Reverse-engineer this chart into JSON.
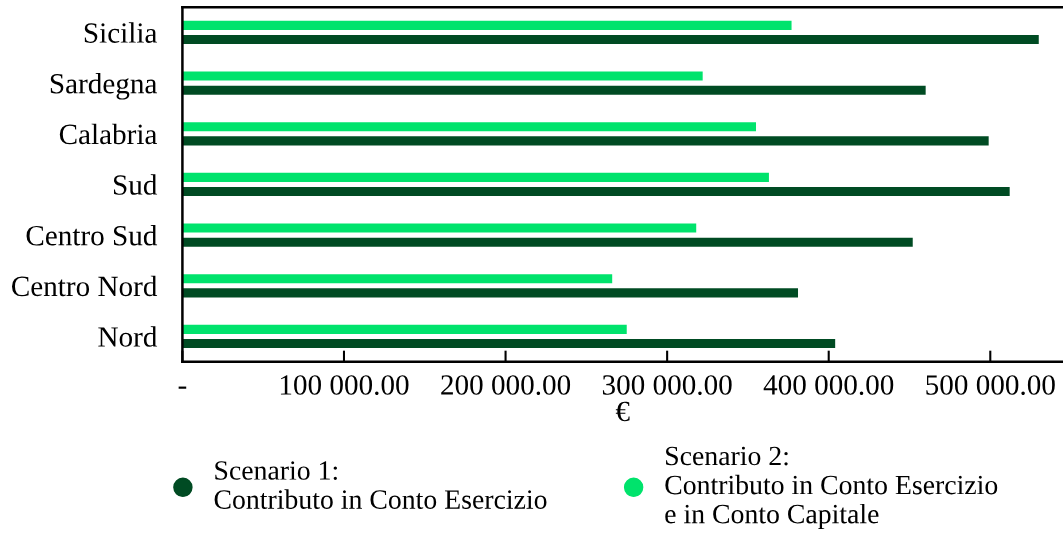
{
  "chart_data": {
    "type": "bar",
    "orientation": "horizontal",
    "xlabel": "€",
    "categories": [
      "Sicilia",
      "Sardegna",
      "Calabria",
      "Sud",
      "Centro Sud",
      "Centro Nord",
      "Nord"
    ],
    "series": [
      {
        "name": "Scenario 1:\nContributo in Conto Esercizio",
        "color": "#004b23",
        "values": [
          530000,
          460000,
          499000,
          512000,
          452000,
          381000,
          404000
        ]
      },
      {
        "name": "Scenario 2:\nContributo in Conto Esercizio\ne in Conto Capitale",
        "color": "#00e36c",
        "values": [
          377000,
          322000,
          355000,
          363000,
          318000,
          266000,
          275000
        ]
      }
    ],
    "xlim": [
      0,
      545000
    ],
    "xticks": [
      {
        "value": 0,
        "label": "-"
      },
      {
        "value": 100000,
        "label": "100 000.00"
      },
      {
        "value": 200000,
        "label": "200 000.00"
      },
      {
        "value": 300000,
        "label": "300 000.00"
      },
      {
        "value": 400000,
        "label": "400 000.00"
      },
      {
        "value": 500000,
        "label": "500 000.00"
      }
    ],
    "grid": false,
    "legend": "bottom"
  }
}
